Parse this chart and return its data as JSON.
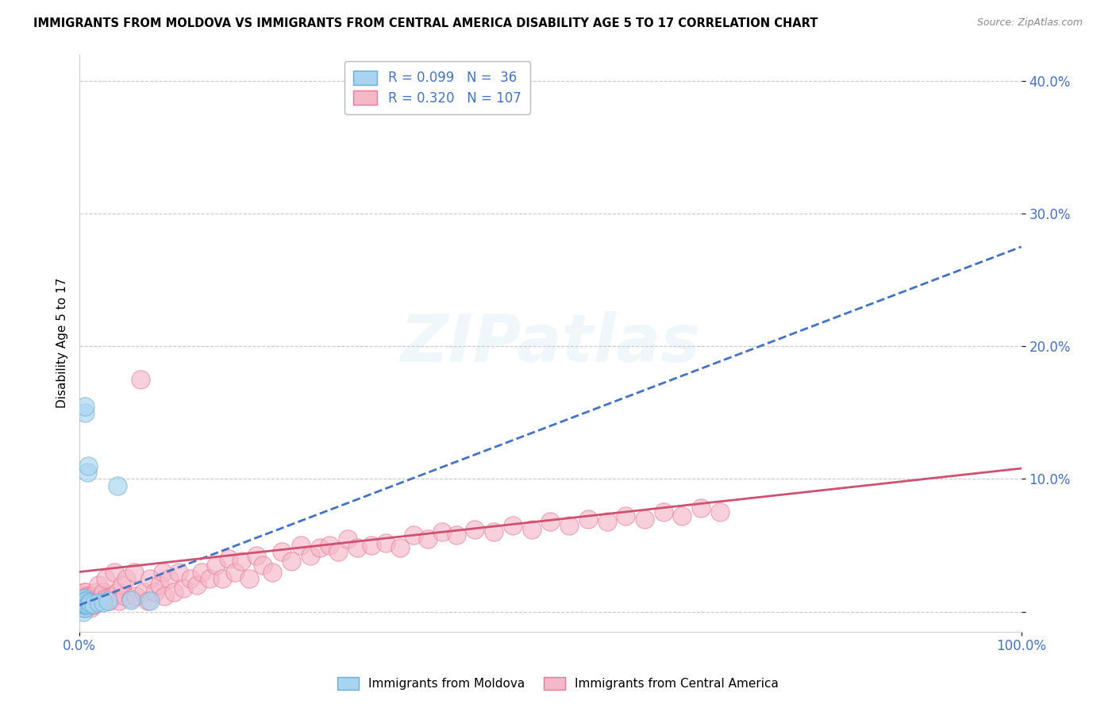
{
  "title": "IMMIGRANTS FROM MOLDOVA VS IMMIGRANTS FROM CENTRAL AMERICA DISABILITY AGE 5 TO 17 CORRELATION CHART",
  "source": "Source: ZipAtlas.com",
  "ylabel": "Disability Age 5 to 17",
  "xlim": [
    0.0,
    1.0
  ],
  "ylim": [
    -0.015,
    0.42
  ],
  "yticks": [
    0.0,
    0.1,
    0.2,
    0.3,
    0.4
  ],
  "ytick_labels": [
    "",
    "10.0%",
    "20.0%",
    "30.0%",
    "40.0%"
  ],
  "legend_r1": "R = 0.099",
  "legend_n1": "N =  36",
  "legend_r2": "R = 0.320",
  "legend_n2": "N = 107",
  "color_moldova": "#a8d4f0",
  "color_central": "#f5b8c8",
  "color_moldova_edge": "#6aadd5",
  "color_central_edge": "#e87898",
  "trend_moldova_color": "#4472c4",
  "trend_central_color": "#d05070",
  "background_color": "#ffffff",
  "grid_color": "#c8c8c8",
  "moldova_x": [
    0.003,
    0.003,
    0.004,
    0.004,
    0.004,
    0.004,
    0.005,
    0.005,
    0.005,
    0.005,
    0.005,
    0.005,
    0.006,
    0.006,
    0.006,
    0.006,
    0.006,
    0.006,
    0.006,
    0.007,
    0.007,
    0.007,
    0.007,
    0.008,
    0.008,
    0.009,
    0.01,
    0.011,
    0.012,
    0.015,
    0.02,
    0.025,
    0.03,
    0.04,
    0.055,
    0.075
  ],
  "moldova_y": [
    0.005,
    0.008,
    0.0,
    0.005,
    0.007,
    0.01,
    0.003,
    0.005,
    0.007,
    0.008,
    0.008,
    0.01,
    0.003,
    0.005,
    0.006,
    0.007,
    0.008,
    0.15,
    0.155,
    0.005,
    0.006,
    0.007,
    0.008,
    0.005,
    0.105,
    0.11,
    0.007,
    0.006,
    0.007,
    0.006,
    0.007,
    0.007,
    0.008,
    0.095,
    0.009,
    0.008
  ],
  "central_x": [
    0.003,
    0.003,
    0.004,
    0.004,
    0.005,
    0.005,
    0.005,
    0.005,
    0.006,
    0.006,
    0.006,
    0.007,
    0.007,
    0.007,
    0.008,
    0.008,
    0.008,
    0.009,
    0.009,
    0.01,
    0.01,
    0.01,
    0.011,
    0.011,
    0.012,
    0.012,
    0.013,
    0.013,
    0.014,
    0.015,
    0.016,
    0.017,
    0.018,
    0.019,
    0.02,
    0.022,
    0.023,
    0.025,
    0.027,
    0.028,
    0.03,
    0.032,
    0.035,
    0.037,
    0.04,
    0.042,
    0.045,
    0.048,
    0.05,
    0.055,
    0.058,
    0.06,
    0.065,
    0.068,
    0.072,
    0.075,
    0.08,
    0.085,
    0.088,
    0.09,
    0.095,
    0.1,
    0.105,
    0.11,
    0.118,
    0.125,
    0.13,
    0.138,
    0.145,
    0.152,
    0.158,
    0.165,
    0.172,
    0.18,
    0.188,
    0.195,
    0.205,
    0.215,
    0.225,
    0.235,
    0.245,
    0.255,
    0.265,
    0.275,
    0.285,
    0.295,
    0.31,
    0.325,
    0.34,
    0.355,
    0.37,
    0.385,
    0.4,
    0.42,
    0.44,
    0.46,
    0.48,
    0.5,
    0.52,
    0.54,
    0.56,
    0.58,
    0.6,
    0.62,
    0.64,
    0.66,
    0.68
  ],
  "central_y": [
    0.005,
    0.01,
    0.005,
    0.012,
    0.003,
    0.007,
    0.01,
    0.015,
    0.005,
    0.008,
    0.012,
    0.005,
    0.01,
    0.015,
    0.005,
    0.008,
    0.012,
    0.005,
    0.01,
    0.005,
    0.008,
    0.012,
    0.005,
    0.01,
    0.003,
    0.008,
    0.005,
    0.012,
    0.008,
    0.005,
    0.008,
    0.01,
    0.015,
    0.008,
    0.02,
    0.008,
    0.012,
    0.015,
    0.01,
    0.025,
    0.01,
    0.008,
    0.012,
    0.03,
    0.015,
    0.008,
    0.02,
    0.012,
    0.025,
    0.01,
    0.03,
    0.012,
    0.175,
    0.015,
    0.008,
    0.025,
    0.015,
    0.02,
    0.03,
    0.012,
    0.025,
    0.015,
    0.03,
    0.018,
    0.025,
    0.02,
    0.03,
    0.025,
    0.035,
    0.025,
    0.04,
    0.03,
    0.038,
    0.025,
    0.042,
    0.035,
    0.03,
    0.045,
    0.038,
    0.05,
    0.042,
    0.048,
    0.05,
    0.045,
    0.055,
    0.048,
    0.05,
    0.052,
    0.048,
    0.058,
    0.055,
    0.06,
    0.058,
    0.062,
    0.06,
    0.065,
    0.062,
    0.068,
    0.065,
    0.07,
    0.068,
    0.072,
    0.07,
    0.075,
    0.072,
    0.078,
    0.075
  ],
  "trend_moldova_start_x": 0.0,
  "trend_moldova_end_x": 1.0,
  "trend_moldova_start_y": 0.005,
  "trend_moldova_end_y": 0.275,
  "trend_central_start_x": 0.0,
  "trend_central_end_x": 1.0,
  "trend_central_start_y": 0.03,
  "trend_central_end_y": 0.108
}
